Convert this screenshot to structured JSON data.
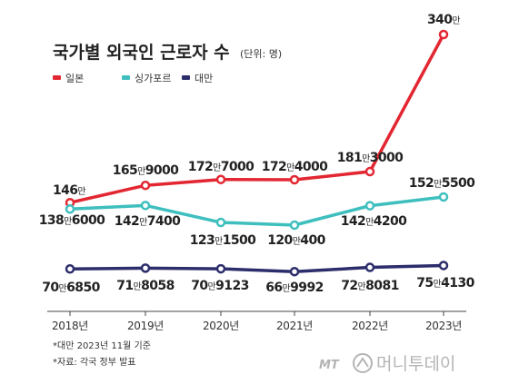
{
  "chart_data": {
    "type": "line",
    "title": "국가별 외국인 근로자 수",
    "unit_note": "(단위: 명)",
    "categories": [
      "2018년",
      "2019년",
      "2020년",
      "2021년",
      "2022년",
      "2023년"
    ],
    "series": [
      {
        "name": "일본",
        "color": "#e32732",
        "values": [
          1460000,
          1659000,
          1727000,
          1724000,
          1813000,
          3400000
        ],
        "labels": [
          {
            "main": "146",
            "unit": "만",
            "rest": ""
          },
          {
            "main": "165",
            "unit": "만",
            "rest": "9000"
          },
          {
            "main": "172",
            "unit": "만",
            "rest": "7000"
          },
          {
            "main": "172",
            "unit": "만",
            "rest": "4000"
          },
          {
            "main": "181",
            "unit": "만",
            "rest": "3000"
          },
          {
            "main": "340",
            "unit": "만",
            "rest": ""
          }
        ]
      },
      {
        "name": "싱가포르",
        "color": "#3ebfbe",
        "values": [
          1386000,
          1427400,
          1231500,
          1200400,
          1424200,
          1525500
        ],
        "labels": [
          {
            "main": "138",
            "unit": "만",
            "rest": "6000"
          },
          {
            "main": "142",
            "unit": "만",
            "rest": "7400"
          },
          {
            "main": "123",
            "unit": "만",
            "rest": "1500"
          },
          {
            "main": "120",
            "unit": "만",
            "rest": "400"
          },
          {
            "main": "142",
            "unit": "만",
            "rest": "4200"
          },
          {
            "main": "152",
            "unit": "만",
            "rest": "5500"
          }
        ]
      },
      {
        "name": "대만",
        "color": "#2c2d6b",
        "values": [
          706850,
          718058,
          709123,
          669992,
          728081,
          754130
        ],
        "labels": [
          {
            "main": "70",
            "unit": "만",
            "rest": "6850"
          },
          {
            "main": "71",
            "unit": "만",
            "rest": "8058"
          },
          {
            "main": "70",
            "unit": "만",
            "rest": "9123"
          },
          {
            "main": "66",
            "unit": "만",
            "rest": "9992"
          },
          {
            "main": "72",
            "unit": "만",
            "rest": "8081"
          },
          {
            "main": "75",
            "unit": "만",
            "rest": "4130"
          }
        ]
      }
    ],
    "notes": [
      "*대만 2023년 11월 기준",
      "*자료: 각국 정부 발표"
    ],
    "legend_position": "top-left",
    "grid": false
  },
  "brand": {
    "mt": "MT",
    "name": "머니투데이"
  }
}
